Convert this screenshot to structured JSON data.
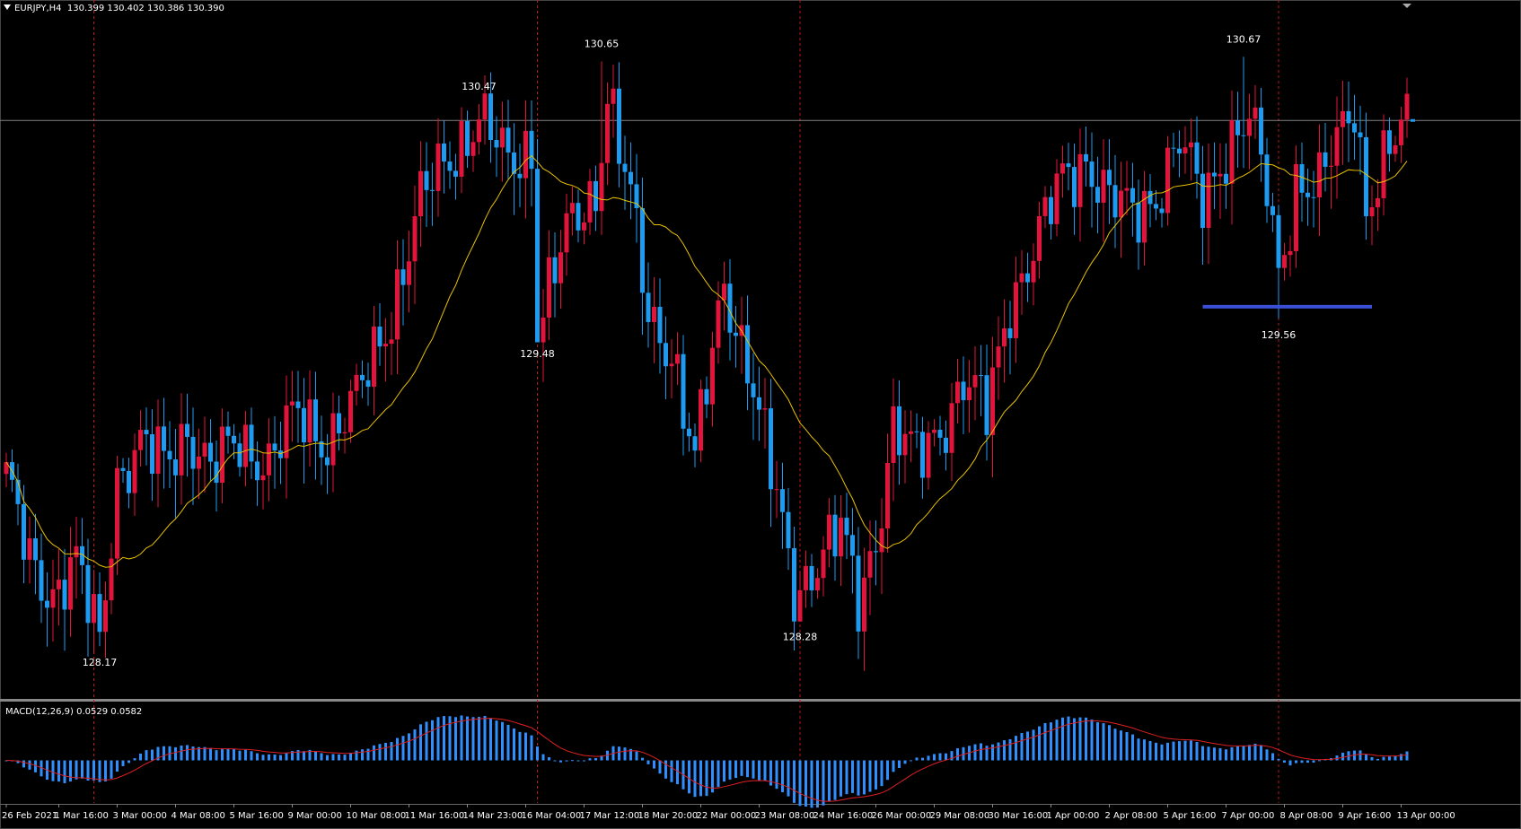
{
  "header": {
    "symbol": "EURJPY,H4",
    "ohlc": "130.399 130.402 130.386 130.390"
  },
  "macd_header": "MACD(12,26,9) 0.0529 0.0582",
  "colors": {
    "background": "#000000",
    "bull": "#e3143c",
    "bear": "#1e9bf0",
    "ma": "#e8c000",
    "grid_vline": "#c01818",
    "hline": "#808080",
    "support": "#3a4fd4",
    "macd_hist": "#2f8fff",
    "macd_signal": "#e02020",
    "text": "#ffffff"
  },
  "chart_data": {
    "type": "candlestick",
    "symbol": "EURJPY",
    "timeframe": "H4",
    "ylim": [
      127.95,
      130.85
    ],
    "x_tick_labels": [
      "26 Feb 2021",
      "1 Mar 16:00",
      "3 Mar 00:00",
      "4 Mar 08:00",
      "5 Mar 16:00",
      "9 Mar 00:00",
      "10 Mar 08:00",
      "11 Mar 16:00",
      "14 Mar 23:00",
      "16 Mar 04:00",
      "17 Mar 12:00",
      "18 Mar 20:00",
      "22 Mar 00:00",
      "23 Mar 08:00",
      "24 Mar 16:00",
      "26 Mar 00:00",
      "29 Mar 08:00",
      "30 Mar 16:00",
      "1 Apr 00:00",
      "2 Apr 08:00",
      "5 Apr 16:00",
      "7 Apr 00:00",
      "8 Apr 08:00",
      "9 Apr 16:00",
      "13 Apr 00:00"
    ],
    "x_tick_index": [
      0,
      9,
      19,
      29,
      39,
      49,
      59,
      69,
      79,
      89,
      99,
      109,
      119,
      129,
      139,
      149,
      159,
      169,
      179,
      189,
      199,
      209,
      219,
      229,
      239
    ],
    "vertical_marker_index": [
      15,
      91,
      136,
      218
    ],
    "horizontal_line_price": 130.4,
    "support_line": {
      "price": 129.61,
      "from_index": 205,
      "to_index": 234
    },
    "annotations": [
      {
        "text": "128.17",
        "index": 16,
        "price": 128.17,
        "pos": "below"
      },
      {
        "text": "130.47",
        "index": 81,
        "price": 130.47,
        "pos": "above"
      },
      {
        "text": "129.48",
        "index": 91,
        "price": 129.48,
        "pos": "below"
      },
      {
        "text": "130.65",
        "index": 102,
        "price": 130.65,
        "pos": "above"
      },
      {
        "text": "128.28",
        "index": 136,
        "price": 128.28,
        "pos": "below"
      },
      {
        "text": "130.67",
        "index": 212,
        "price": 130.67,
        "pos": "above"
      },
      {
        "text": "129.56",
        "index": 218,
        "price": 129.56,
        "pos": "below"
      }
    ],
    "price_anchors": [
      [
        0,
        128.85
      ],
      [
        4,
        128.55
      ],
      [
        8,
        128.4
      ],
      [
        12,
        128.5
      ],
      [
        16,
        128.2
      ],
      [
        19,
        128.9
      ],
      [
        23,
        129.0
      ],
      [
        27,
        128.95
      ],
      [
        31,
        129.1
      ],
      [
        35,
        128.9
      ],
      [
        40,
        129.05
      ],
      [
        45,
        128.95
      ],
      [
        50,
        129.15
      ],
      [
        55,
        129.05
      ],
      [
        60,
        129.2
      ],
      [
        66,
        129.6
      ],
      [
        71,
        130.05
      ],
      [
        76,
        130.25
      ],
      [
        81,
        130.42
      ],
      [
        86,
        130.2
      ],
      [
        90,
        130.3
      ],
      [
        91,
        129.55
      ],
      [
        96,
        129.9
      ],
      [
        101,
        130.1
      ],
      [
        103,
        130.55
      ],
      [
        107,
        130.05
      ],
      [
        110,
        129.55
      ],
      [
        114,
        129.45
      ],
      [
        118,
        128.95
      ],
      [
        123,
        129.7
      ],
      [
        127,
        129.4
      ],
      [
        131,
        128.9
      ],
      [
        135,
        128.4
      ],
      [
        139,
        128.55
      ],
      [
        143,
        128.65
      ],
      [
        146,
        128.35
      ],
      [
        149,
        128.65
      ],
      [
        152,
        129.1
      ],
      [
        156,
        128.95
      ],
      [
        160,
        129.1
      ],
      [
        164,
        129.3
      ],
      [
        168,
        129.15
      ],
      [
        172,
        129.65
      ],
      [
        177,
        129.9
      ],
      [
        181,
        130.15
      ],
      [
        185,
        130.25
      ],
      [
        189,
        130.05
      ],
      [
        193,
        130.0
      ],
      [
        197,
        130.1
      ],
      [
        201,
        130.3
      ],
      [
        205,
        130.05
      ],
      [
        209,
        130.3
      ],
      [
        213,
        130.4
      ],
      [
        216,
        130.1
      ],
      [
        218,
        129.75
      ],
      [
        221,
        130.15
      ],
      [
        225,
        130.1
      ],
      [
        228,
        130.3
      ],
      [
        231,
        130.5
      ],
      [
        233,
        130.05
      ],
      [
        236,
        130.2
      ],
      [
        240,
        130.39
      ]
    ],
    "ma_period": 21,
    "macd": {
      "params": "12,26,9",
      "value": 0.0529,
      "signal": 0.0582
    }
  }
}
